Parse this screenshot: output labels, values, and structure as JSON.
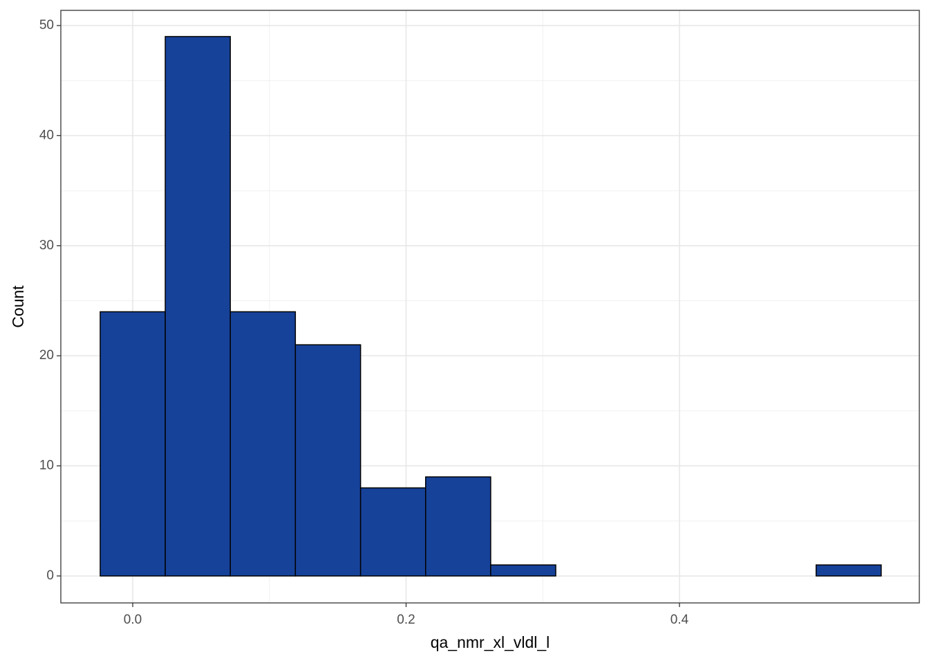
{
  "chart_data": {
    "type": "histogram",
    "x_label": "qa_nmr_xl_vldl_l",
    "y_label": "Count",
    "bins": [
      -0.0238,
      0.0238,
      0.0714,
      0.119,
      0.1667,
      0.2143,
      0.2619,
      0.3095,
      0.3571,
      0.4048,
      0.4524,
      0.5,
      0.5476
    ],
    "values": [
      24,
      49,
      24,
      21,
      8,
      9,
      1,
      0,
      0,
      0,
      0,
      1
    ],
    "color": "#17429a",
    "edgecolor": "#000000",
    "xlim": [
      -0.0526,
      0.5755
    ],
    "ylim": [
      -2.45,
      51.38
    ],
    "xticks": [
      {
        "value": 0,
        "label": "0.0"
      },
      0.2,
      0.4
    ],
    "yticks": [
      0,
      10,
      20,
      30,
      40,
      50
    ],
    "grid": true
  }
}
